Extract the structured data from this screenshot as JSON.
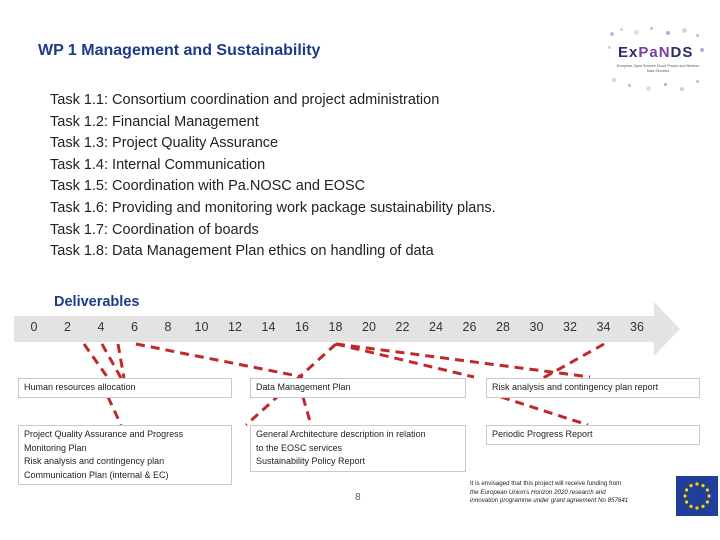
{
  "slide": {
    "title": "WP 1 Management and Sustainability",
    "page_number": "8"
  },
  "logo": {
    "name_part1": "Ex",
    "name_part2": "PaN",
    "name_part3": "DS",
    "subtitle": "European Open Science Cloud Photon and Neutron Data Services"
  },
  "tasks": [
    "Task 1.1: Consortium coordination and project administration",
    "Task 1.2: Financial Management",
    "Task 1.3: Project Quality Assurance",
    "Task 1.4: Internal Communication",
    "Task 1.5: Coordination with Pa.NOSC and EOSC",
    "Task 1.6: Providing and monitoring work package sustainability plans.",
    "Task 1.7: Coordination of boards",
    "Task 1.8: Data Management Plan ethics on handling of data"
  ],
  "deliverables": {
    "label": "Deliverables",
    "timeline_ticks": [
      "0",
      "2",
      "4",
      "6",
      "8",
      "10",
      "12",
      "14",
      "16",
      "18",
      "20",
      "22",
      "24",
      "26",
      "28",
      "30",
      "32",
      "34",
      "36"
    ],
    "boxes": [
      {
        "lines": [
          "Human resources allocation"
        ]
      },
      {
        "lines": [
          "Data Management Plan"
        ]
      },
      {
        "lines": [
          "Risk analysis and contingency plan report"
        ]
      },
      {
        "lines": [
          "Project Quality Assurance and Progress",
          "Monitoring Plan",
          "Risk analysis and contingency plan",
          "Communication Plan (internal & EC)"
        ]
      },
      {
        "lines": [
          "General Architecture description in relation",
          "to the EOSC services",
          "Sustainability Policy Report"
        ]
      },
      {
        "lines": [
          "Periodic Progress Report"
        ]
      }
    ]
  },
  "funding": {
    "line1": "It is envisaged that this project will receive funding from",
    "line2": "the European Union's Horizon 2020 research and",
    "line3": "innovation programme under grant agreement No 857641"
  },
  "colors": {
    "title": "#1f3a8a",
    "connector": "#c0282a",
    "timeline": "#e3e3e3",
    "eu_blue": "#1f3f99",
    "eu_star": "#ffd700"
  }
}
